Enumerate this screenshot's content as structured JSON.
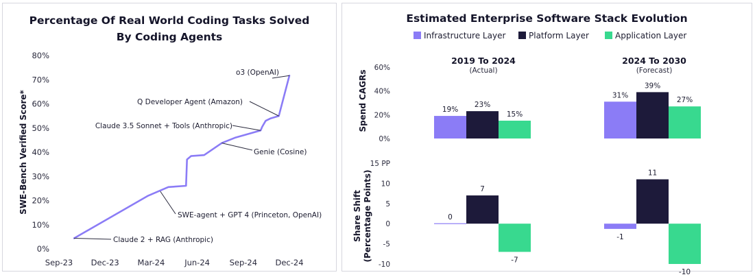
{
  "chart_data": [
    {
      "type": "line",
      "title_lines": [
        "Percentage Of Real World Coding Tasks Solved",
        "By Coding Agents"
      ],
      "ylabel": "SWE-Bench Verified Score*",
      "xlabel": "",
      "ylim": [
        0,
        80
      ],
      "y_ticks": [
        "0%",
        "10%",
        "20%",
        "30%",
        "40%",
        "50%",
        "60%",
        "70%",
        "80%"
      ],
      "x_ticks": [
        "Sep-23",
        "Dec-23",
        "Mar-24",
        "Jun-24",
        "Sep-24",
        "Dec-24"
      ],
      "series": [
        {
          "color": "#8b7cf6",
          "points": [
            [
              "2023-10-01",
              4.4
            ],
            [
              "2024-02-25",
              22.0
            ],
            [
              "2024-04-05",
              25.6
            ],
            [
              "2024-05-10",
              26.1
            ],
            [
              "2024-05-12",
              37.0
            ],
            [
              "2024-05-20",
              38.4
            ],
            [
              "2024-06-15",
              38.8
            ],
            [
              "2024-07-20",
              43.8
            ],
            [
              "2024-08-15",
              46.0
            ],
            [
              "2024-10-05",
              49.0
            ],
            [
              "2024-10-08",
              50.5
            ],
            [
              "2024-10-15",
              53.0
            ],
            [
              "2024-10-25",
              54.0
            ],
            [
              "2024-11-10",
              55.0
            ],
            [
              "2024-12-01",
              71.7
            ]
          ]
        }
      ],
      "annotations": [
        {
          "text": "o3 (OpenAI)",
          "x": "2024-12-01",
          "y": 71.7
        },
        {
          "text": "Q Developer Agent (Amazon)",
          "x": "2024-11-10",
          "y": 55.0
        },
        {
          "text": "Claude 3.5 Sonnet + Tools (Anthropic)",
          "x": "2024-10-05",
          "y": 49.0
        },
        {
          "text": "Genie (Cosine)",
          "x": "2024-07-20",
          "y": 43.8
        },
        {
          "text": "SWE-agent + GPT 4 (Princeton, OpenAI)",
          "x": "2024-03-20",
          "y": 23.8
        },
        {
          "text": "Claude 2 + RAG (Anthropic)",
          "x": "2023-10-01",
          "y": 4.4
        }
      ]
    },
    {
      "type": "bar",
      "title": "Estimated Enterprise Software Stack Evolution",
      "legend": "top",
      "series": [
        {
          "name": "Infrastructure Layer",
          "color": "#8b7cf6"
        },
        {
          "name": "Platform Layer",
          "color": "#1d1a3a"
        },
        {
          "name": "Application Layer",
          "color": "#38d98f"
        }
      ],
      "groups": [
        {
          "title": "2019 To 2024",
          "subtitle": "(Actual)"
        },
        {
          "title": "2024 To 2030",
          "subtitle": "(Forecast)"
        }
      ],
      "panels": [
        {
          "ylabel": "Spend CAGRs",
          "ylim": [
            0,
            60
          ],
          "y_ticks": [
            "0%",
            "20%",
            "40%",
            "60%"
          ],
          "values": [
            [
              19,
              23,
              15
            ],
            [
              31,
              39,
              27
            ]
          ],
          "labels": [
            [
              "19%",
              "23%",
              "15%"
            ],
            [
              "31%",
              "39%",
              "27%"
            ]
          ]
        },
        {
          "ylabel_lines": [
            "Share Shift",
            "(Percentage Points)"
          ],
          "ylim": [
            -10,
            15
          ],
          "y_ticks": [
            "-10",
            "-5",
            "0",
            "5",
            "10",
            "15 PP"
          ],
          "values": [
            [
              0,
              7,
              -7
            ],
            [
              -1.3,
              11,
              -10
            ]
          ],
          "labels": [
            [
              "0",
              "7",
              "-7"
            ],
            [
              "-1",
              "11",
              "-10"
            ]
          ]
        }
      ]
    }
  ]
}
